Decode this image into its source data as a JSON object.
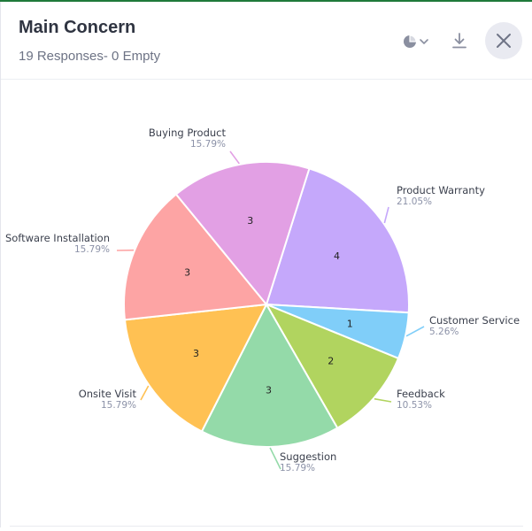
{
  "header": {
    "title": "Main Concern",
    "subtitle": "19 Responses- 0 Empty"
  },
  "icons": {
    "chart_type": "pie-chart-icon",
    "download": "download-icon",
    "close": "close-icon"
  },
  "chart_data": {
    "type": "pie",
    "title": "Main Concern",
    "total": 19,
    "slices": [
      {
        "label": "Product Warranty",
        "value": 4,
        "percent": "21.05%",
        "color": "#c5a8fb"
      },
      {
        "label": "Customer Service",
        "value": 1,
        "percent": "5.26%",
        "color": "#80cef9"
      },
      {
        "label": "Feedback",
        "value": 2,
        "percent": "10.53%",
        "color": "#b1d45f"
      },
      {
        "label": "Suggestion",
        "value": 3,
        "percent": "15.79%",
        "color": "#94daa9"
      },
      {
        "label": "Onsite Visit",
        "value": 3,
        "percent": "15.79%",
        "color": "#ffc153"
      },
      {
        "label": "Software Installation",
        "value": 3,
        "percent": "15.79%",
        "color": "#fda4a4"
      },
      {
        "label": "Buying Product",
        "value": 3,
        "percent": "15.79%",
        "color": "#e2a0e4"
      }
    ],
    "label_text_color": "#3a3f4c",
    "percent_text_color": "#8c92a8"
  }
}
